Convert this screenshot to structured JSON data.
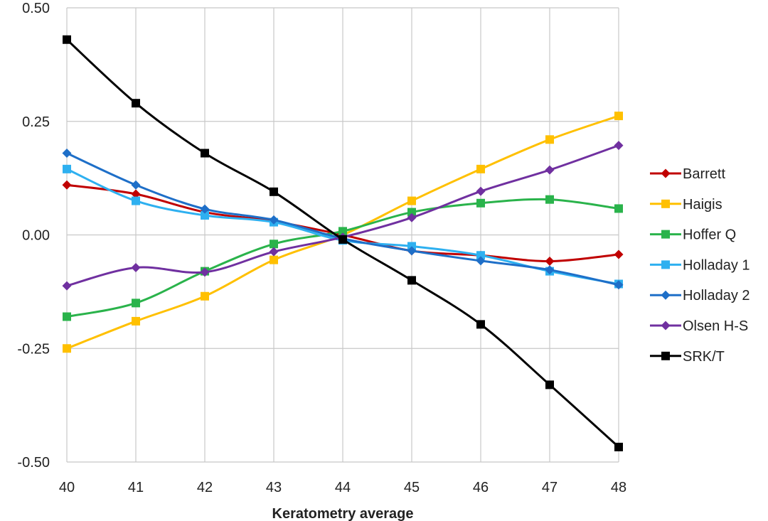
{
  "chart_data": {
    "type": "line",
    "title": "",
    "xlabel": "Keratometry average",
    "ylabel": "",
    "x": [
      40,
      41,
      42,
      43,
      44,
      45,
      46,
      47,
      48
    ],
    "xlim": [
      40,
      48
    ],
    "ylim": [
      -0.5,
      0.5
    ],
    "y_ticks": [
      "0.50",
      "0.25",
      "0.00",
      "-0.25",
      "-0.50"
    ],
    "grid": true,
    "legend_position": "right",
    "series": [
      {
        "name": "Barrett",
        "color": "#c00000",
        "marker": "diamond",
        "values": [
          0.11,
          0.09,
          0.05,
          0.03,
          0.0,
          -0.035,
          -0.045,
          -0.058,
          -0.043
        ]
      },
      {
        "name": "Haigis",
        "color": "#ffc000",
        "marker": "square",
        "values": [
          -0.25,
          -0.19,
          -0.135,
          -0.055,
          0.0,
          0.075,
          0.145,
          0.21,
          0.262
        ]
      },
      {
        "name": "Hoffer Q",
        "color": "#2ab34b",
        "marker": "square",
        "values": [
          -0.18,
          -0.15,
          -0.08,
          -0.02,
          0.008,
          0.05,
          0.07,
          0.078,
          0.058
        ]
      },
      {
        "name": "Holladay 1",
        "color": "#2eb0f0",
        "marker": "square",
        "values": [
          0.145,
          0.075,
          0.043,
          0.028,
          -0.012,
          -0.025,
          -0.045,
          -0.08,
          -0.108
        ]
      },
      {
        "name": "Holladay 2",
        "color": "#1e6fc8",
        "marker": "diamond",
        "values": [
          0.18,
          0.11,
          0.057,
          0.033,
          -0.008,
          -0.035,
          -0.057,
          -0.077,
          -0.11
        ]
      },
      {
        "name": "Olsen H-S",
        "color": "#7030a0",
        "marker": "diamond",
        "values": [
          -0.112,
          -0.072,
          -0.082,
          -0.037,
          -0.005,
          0.038,
          0.096,
          0.143,
          0.197
        ]
      },
      {
        "name": "SRK/T",
        "color": "#000000",
        "marker": "square",
        "values": [
          0.43,
          0.29,
          0.18,
          0.095,
          -0.01,
          -0.1,
          -0.197,
          -0.33,
          -0.467
        ]
      }
    ]
  }
}
